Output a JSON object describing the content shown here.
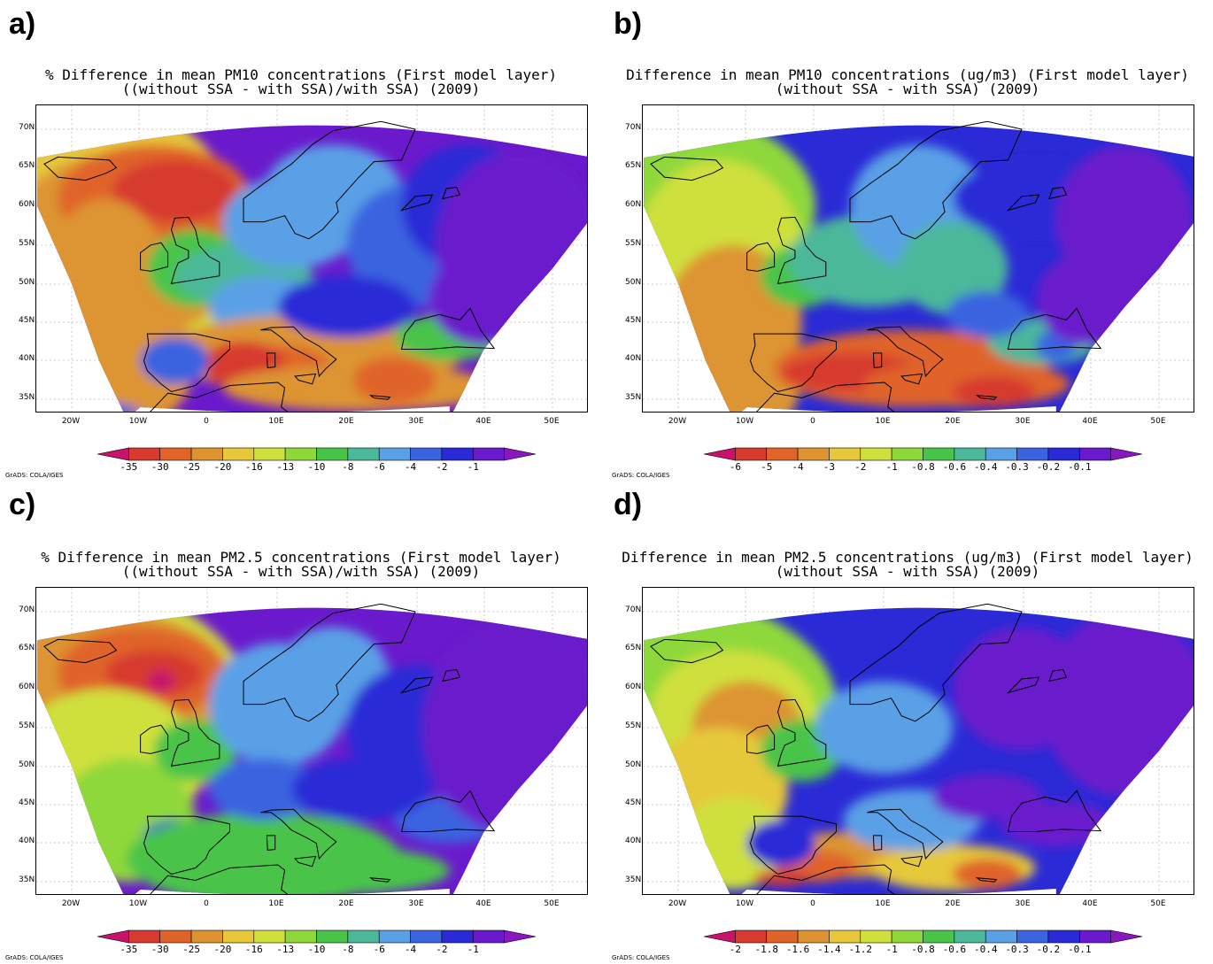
{
  "panels": [
    {
      "letter": "a)",
      "title_line1": "% Difference in mean PM10 concentrations (First model layer)",
      "title_line2": "((without SSA - with SSA)/with SSA) (2009)",
      "colorbar_labels": [
        "-35",
        "-30",
        "-25",
        "-20",
        "-16",
        "-13",
        "-10",
        "-8",
        "-6",
        "-4",
        "-2",
        "-1"
      ],
      "credit": "GrADS: COLA/IGES"
    },
    {
      "letter": "b)",
      "title_line1": "Difference in mean PM10 concentrations (ug/m3) (First model layer)",
      "title_line2": "(without SSA - with SSA) (2009)",
      "colorbar_labels": [
        "-6",
        "-5",
        "-4",
        "-3",
        "-2",
        "-1",
        "-0.8",
        "-0.6",
        "-0.4",
        "-0.3",
        "-0.2",
        "-0.1"
      ],
      "credit": "GrADS: COLA/IGES"
    },
    {
      "letter": "c)",
      "title_line1": "% Difference in mean PM2.5 concentrations (First model layer)",
      "title_line2": "((without SSA - with SSA)/with SSA) (2009)",
      "colorbar_labels": [
        "-35",
        "-30",
        "-25",
        "-20",
        "-16",
        "-13",
        "-10",
        "-8",
        "-6",
        "-4",
        "-2",
        "-1"
      ],
      "credit": "GrADS: COLA/IGES"
    },
    {
      "letter": "d)",
      "title_line1": "Difference in mean PM2.5 concentrations (ug/m3) (First model layer)",
      "title_line2": "(without SSA - with SSA) (2009)",
      "colorbar_labels": [
        "-2",
        "-1.8",
        "-1.6",
        "-1.4",
        "-1.2",
        "-1",
        "-0.8",
        "-0.6",
        "-0.4",
        "-0.3",
        "-0.2",
        "-0.1"
      ],
      "credit": "GrADS: COLA/IGES"
    }
  ],
  "latitude_labels": [
    "70N",
    "65N",
    "60N",
    "55N",
    "50N",
    "45N",
    "40N",
    "35N"
  ],
  "longitude_labels": [
    "20W",
    "10W",
    "0",
    "10E",
    "20E",
    "30E",
    "40E",
    "50E"
  ],
  "palette": [
    "#c8126b",
    "#d73a2e",
    "#e0642a",
    "#dd9430",
    "#e6c83a",
    "#cfe03c",
    "#8fd83a",
    "#49c44a",
    "#4cb89a",
    "#5aa0e6",
    "#3a64e0",
    "#2a2ad6",
    "#6a1acc",
    "#8a16c0"
  ]
}
